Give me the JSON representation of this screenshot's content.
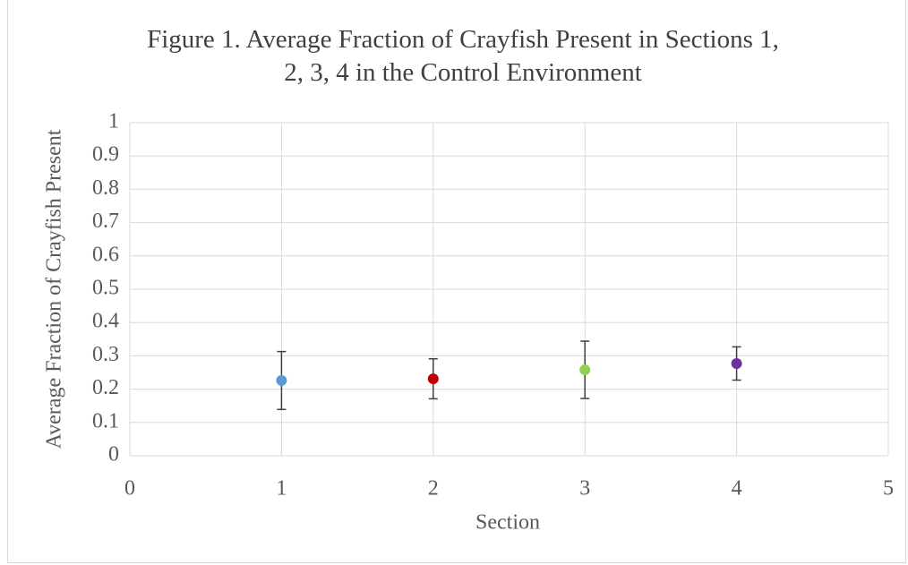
{
  "chart_data": {
    "type": "scatter",
    "title": "Figure 1. Average Fraction of Crayfish Present in Sections 1, 2, 3, 4 in the Control Environment",
    "x_label": "Section",
    "y_label": "Average Fraction of Crayfish Present",
    "series": [
      {
        "x": [
          1,
          2,
          3,
          4
        ],
        "values": [
          0.226,
          0.231,
          0.258,
          0.277
        ],
        "errors": [
          0.087,
          0.06,
          0.086,
          0.05
        ],
        "colors": [
          "#5b9bd5",
          "#c00000",
          "#92d050",
          "#7030a0"
        ],
        "error_color": "#404040"
      }
    ],
    "xlim": [
      0,
      5
    ],
    "xticks": [
      0,
      1,
      2,
      3,
      4,
      5
    ],
    "ylim": [
      0,
      1
    ],
    "yticks": [
      0,
      0.1,
      0.2,
      0.3,
      0.4,
      0.5,
      0.6,
      0.7,
      0.8,
      0.9,
      1
    ],
    "grid": true
  }
}
